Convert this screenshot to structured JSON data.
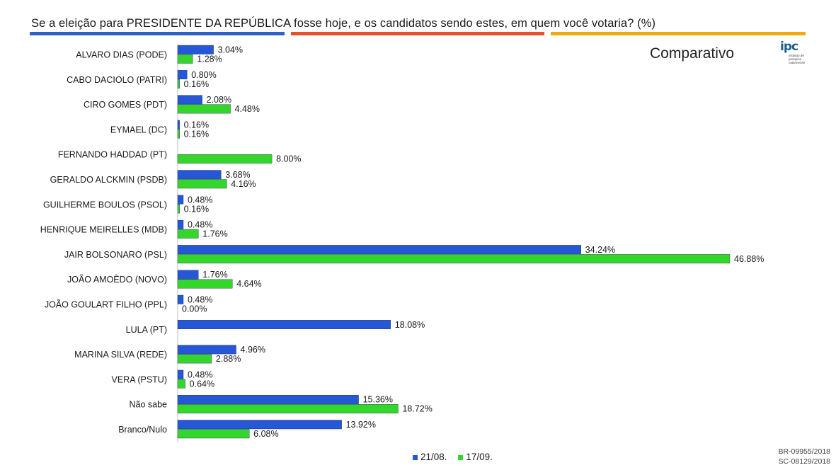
{
  "title": "Se a eleição para PRESIDENTE DA REPÚBLICA fosse hoje, e os candidatos sendo estes, em quem você votaria? (%)",
  "subtitle": "Comparativo",
  "logo": {
    "mark": "ipc",
    "text": "instituto de pesquisa catarinense"
  },
  "colors": {
    "blue": "#2557d6",
    "green": "#35d62b",
    "rule_blue": "#2f62c9",
    "rule_red": "#e8502a",
    "rule_orange": "#f2a90f"
  },
  "codes": [
    "BR-09955/2018",
    "SC-08129/2018"
  ],
  "chart_data": {
    "type": "bar",
    "orientation": "horizontal",
    "categories": [
      "ALVARO DIAS (PODE)",
      "CABO DACIOLO (PATRI)",
      "CIRO GOMES (PDT)",
      "EYMAEL (DC)",
      "FERNANDO HADDAD (PT)",
      "GERALDO ALCKMIN (PSDB)",
      "GUILHERME BOULOS (PSOL)",
      "HENRIQUE MEIRELLES (MDB)",
      "JAIR BOLSONARO (PSL)",
      "JOÃO AMOÊDO (NOVO)",
      "JOÃO GOULART FILHO (PPL)",
      "LULA (PT)",
      "MARINA SILVA (REDE)",
      "VERA (PSTU)",
      "Não sabe",
      "Branco/Nulo"
    ],
    "series": [
      {
        "name": "21/08.",
        "color": "#2557d6",
        "values": [
          3.04,
          0.8,
          2.08,
          0.16,
          null,
          3.68,
          0.48,
          0.48,
          34.24,
          1.76,
          0.48,
          18.08,
          4.96,
          0.48,
          15.36,
          13.92
        ],
        "labels": [
          "3.04%",
          "0.80%",
          "2.08%",
          "0.16%",
          null,
          "3.68%",
          "0.48%",
          "0.48%",
          "34.24%",
          "1.76%",
          "0.48%",
          "18.08%",
          "4.96%",
          "0.48%",
          "15.36%",
          "13.92%"
        ]
      },
      {
        "name": "17/09.",
        "color": "#35d62b",
        "values": [
          1.28,
          0.16,
          4.48,
          0.16,
          8.0,
          4.16,
          0.16,
          1.76,
          46.88,
          4.64,
          0.0,
          null,
          2.88,
          0.64,
          18.72,
          6.08
        ],
        "labels": [
          "1.28%",
          "0.16%",
          "4.48%",
          "0.16%",
          "8.00%",
          "4.16%",
          "0.16%",
          "1.76%",
          "46.88%",
          "4.64%",
          "0.00%",
          null,
          "2.88%",
          "0.64%",
          "18.72%",
          "6.08%"
        ]
      }
    ],
    "xlim": [
      0,
      46.88
    ],
    "grid": false,
    "legend_position": "bottom"
  }
}
